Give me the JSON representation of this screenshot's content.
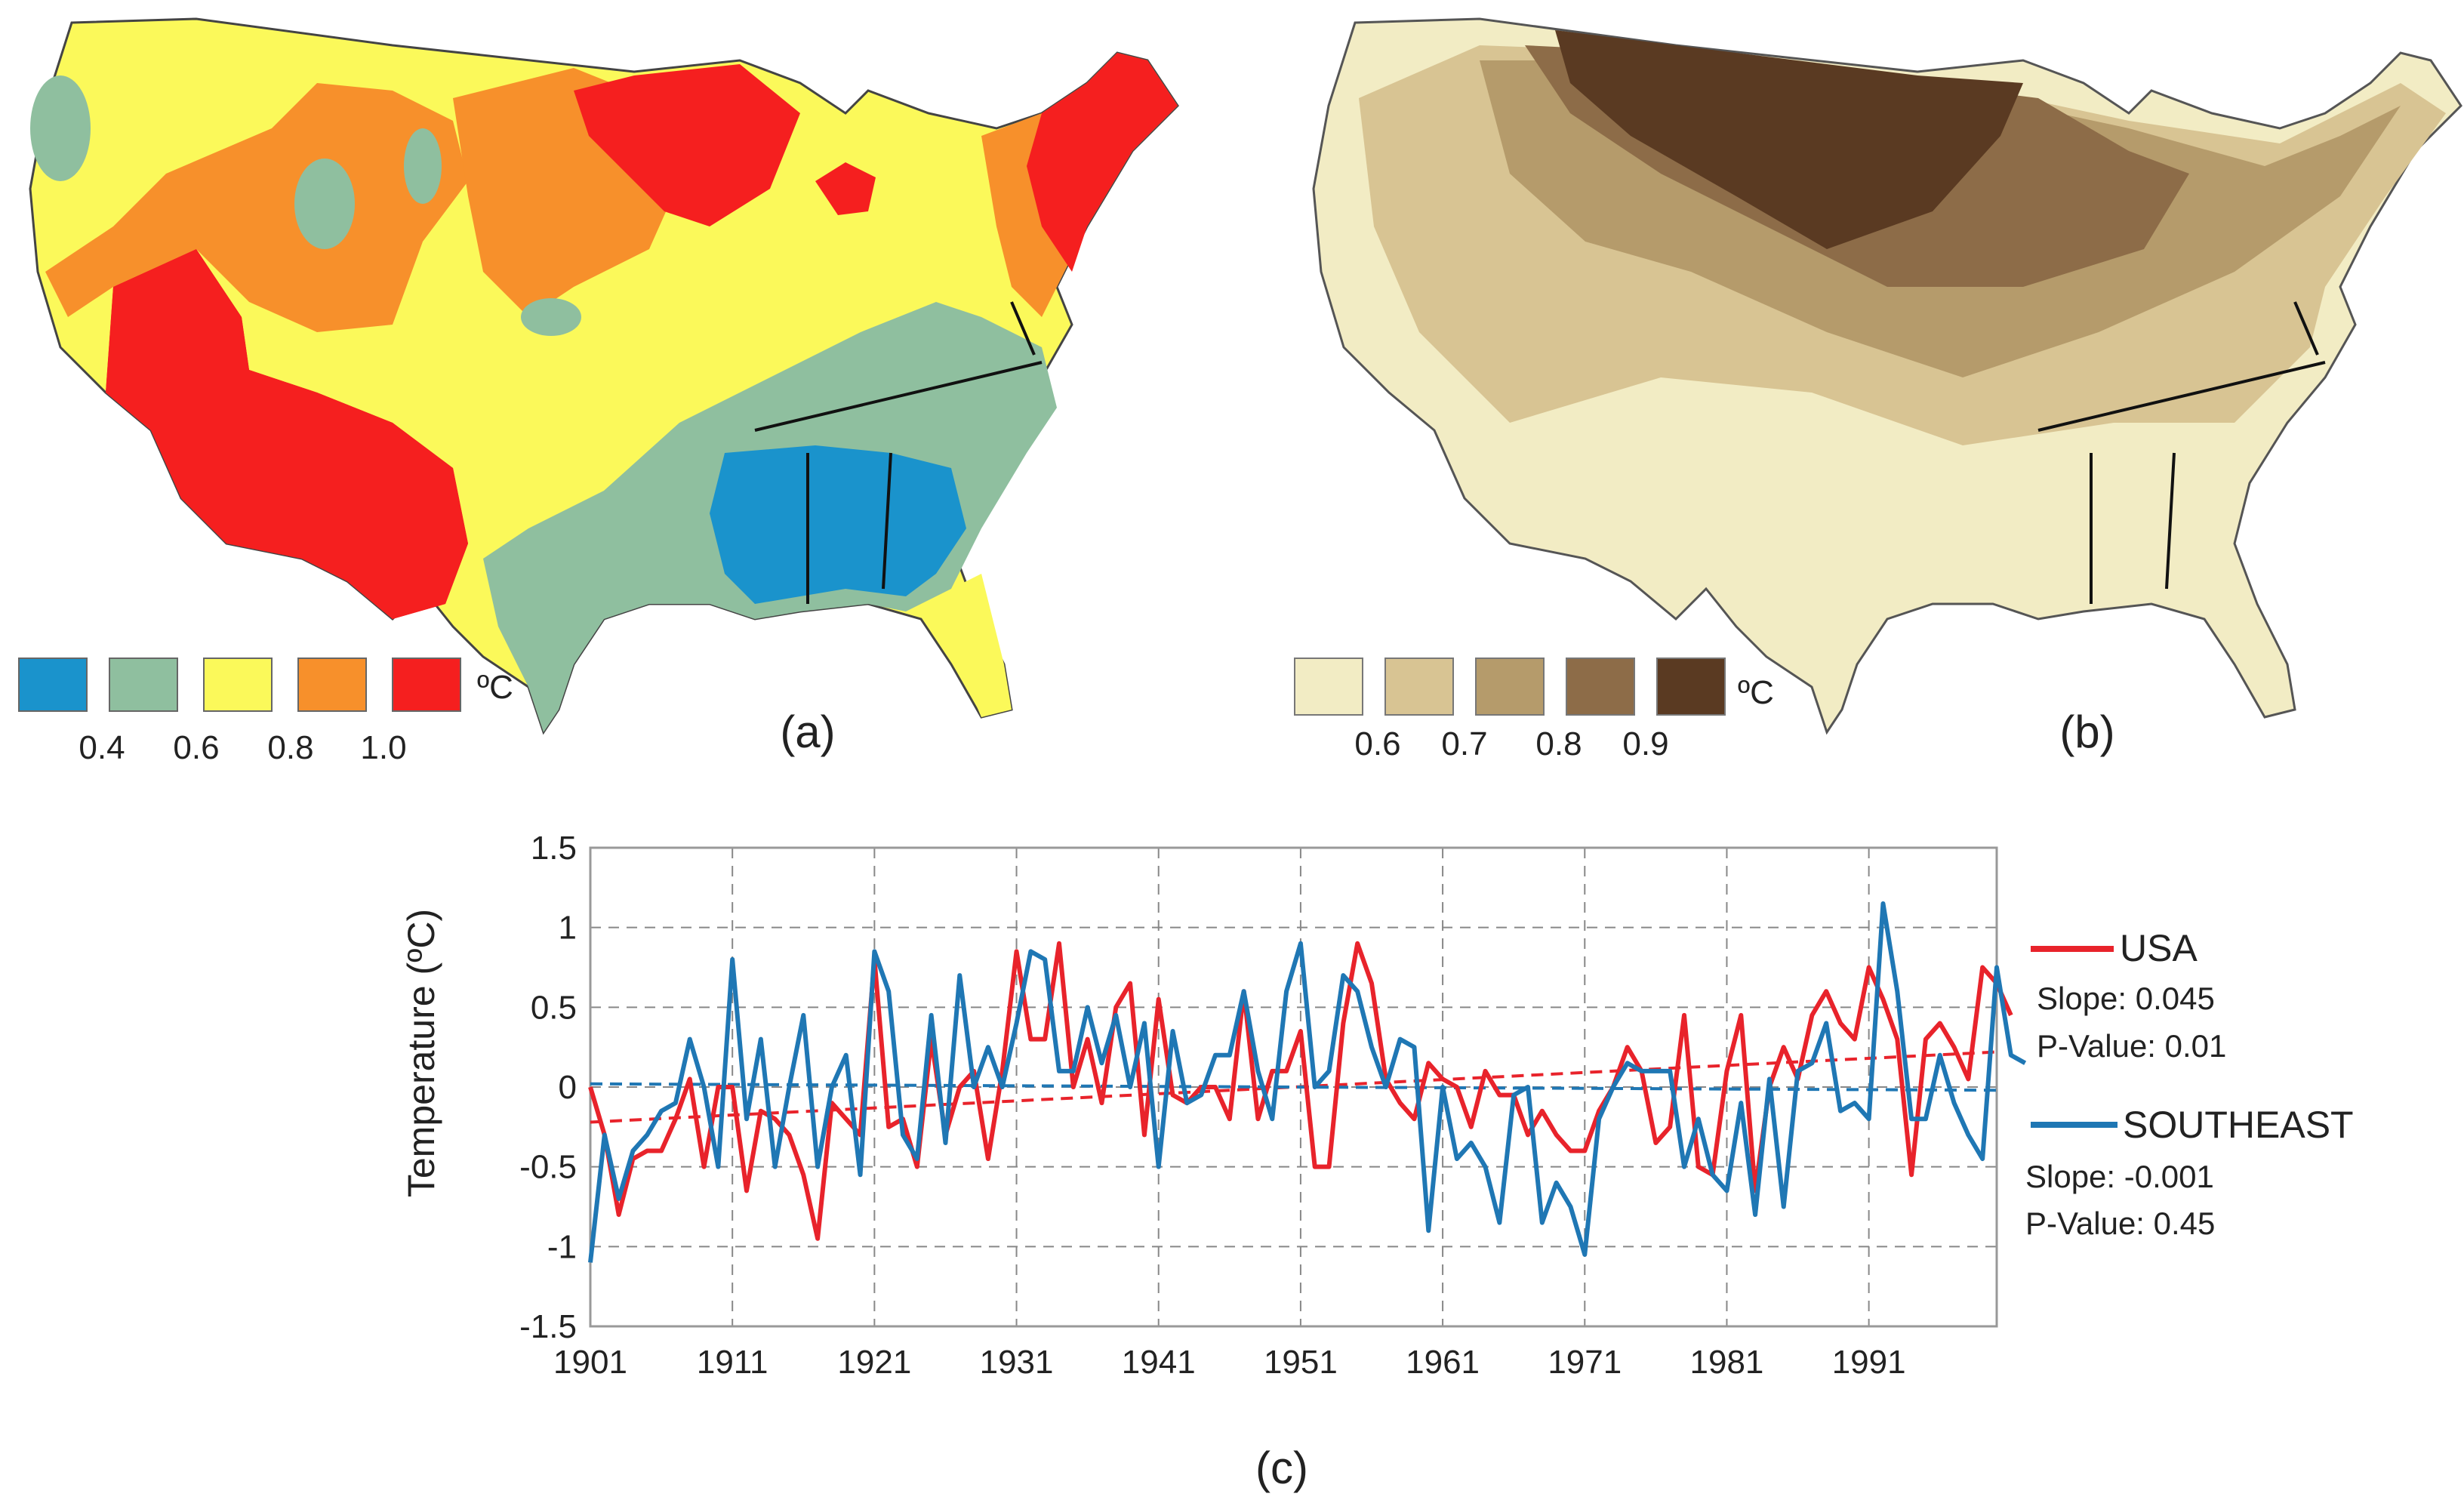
{
  "panels": {
    "a": {
      "label": "(a)",
      "unit": "ºC",
      "legend_colors": [
        "#1a93cc",
        "#8fbf9f",
        "#fbf95a",
        "#f7902b",
        "#f51f1f"
      ],
      "legend_ticks": [
        "0.4",
        "0.6",
        "0.8",
        "1.0"
      ]
    },
    "b": {
      "label": "(b)",
      "unit": "ºC",
      "legend_colors": [
        "#f2ecc4",
        "#d8c493",
        "#b59b6b",
        "#8d6c48",
        "#5a3a22"
      ],
      "legend_ticks": [
        "0.6",
        "0.7",
        "0.8",
        "0.9"
      ]
    },
    "c": {
      "label": "(c)"
    }
  },
  "chart_data": {
    "type": "line",
    "ylabel": "Temperature (ºC)",
    "xlabel": "",
    "xlim": [
      1901,
      2000
    ],
    "ylim": [
      -1.5,
      1.5
    ],
    "yticks": [
      "1.5",
      "1",
      "0.5",
      "0",
      "-0.5",
      "-1",
      "-1.5"
    ],
    "ytick_values": [
      1.5,
      1,
      0.5,
      0,
      -0.5,
      -1,
      -1.5
    ],
    "xticks": [
      "1901",
      "1911",
      "1921",
      "1931",
      "1941",
      "1951",
      "1961",
      "1971",
      "1981",
      "1991"
    ],
    "xtick_values": [
      1901,
      1911,
      1921,
      1931,
      1941,
      1951,
      1961,
      1971,
      1981,
      1991
    ],
    "grid": true,
    "series": [
      {
        "name": "USA",
        "color": "#e8232b",
        "slope_text": "Slope: 0.045",
        "pvalue_text": "P-Value: 0.01",
        "trend": [
          -0.22,
          0.22
        ],
        "x_start": 1901,
        "values": [
          0.0,
          -0.3,
          -0.8,
          -0.45,
          -0.4,
          -0.4,
          -0.2,
          0.05,
          -0.5,
          0.0,
          0.0,
          -0.65,
          -0.15,
          -0.2,
          -0.3,
          -0.55,
          -0.95,
          -0.1,
          -0.2,
          -0.3,
          0.8,
          -0.25,
          -0.2,
          -0.5,
          0.3,
          -0.3,
          0.0,
          0.1,
          -0.45,
          0.1,
          0.85,
          0.3,
          0.3,
          0.9,
          0.0,
          0.3,
          -0.1,
          0.5,
          0.65,
          -0.3,
          0.55,
          -0.05,
          -0.1,
          0.0,
          0.0,
          -0.2,
          0.6,
          -0.2,
          0.1,
          0.1,
          0.35,
          -0.5,
          -0.5,
          0.4,
          0.9,
          0.65,
          0.05,
          -0.1,
          -0.2,
          0.15,
          0.05,
          0.0,
          -0.25,
          0.1,
          -0.05,
          -0.05,
          -0.3,
          -0.15,
          -0.3,
          -0.4,
          -0.4,
          -0.15,
          0.0,
          0.25,
          0.1,
          -0.35,
          -0.25,
          0.45,
          -0.5,
          -0.55,
          0.1,
          0.45,
          -0.65,
          0.0,
          0.25,
          0.05,
          0.45,
          0.6,
          0.4,
          0.3,
          0.75,
          0.55,
          0.3,
          -0.55,
          0.3,
          0.4,
          0.25,
          0.05,
          0.75,
          0.65,
          0.45
        ]
      },
      {
        "name": "SOUTHEAST",
        "color": "#1f77b4",
        "slope_text": "Slope: -0.001",
        "pvalue_text": "P-Value: 0.45",
        "trend": [
          0.02,
          -0.02
        ],
        "x_start": 1901,
        "values": [
          -1.1,
          -0.3,
          -0.7,
          -0.4,
          -0.3,
          -0.15,
          -0.1,
          0.3,
          0.0,
          -0.5,
          0.8,
          -0.2,
          0.3,
          -0.5,
          0.0,
          0.45,
          -0.5,
          0.0,
          0.2,
          -0.55,
          0.85,
          0.6,
          -0.3,
          -0.45,
          0.45,
          -0.35,
          0.7,
          0.0,
          0.25,
          0.0,
          0.4,
          0.85,
          0.8,
          0.1,
          0.1,
          0.5,
          0.15,
          0.45,
          0.0,
          0.4,
          -0.5,
          0.35,
          -0.1,
          -0.05,
          0.2,
          0.2,
          0.6,
          0.1,
          -0.2,
          0.6,
          0.9,
          0.0,
          0.1,
          0.7,
          0.6,
          0.25,
          0.0,
          0.3,
          0.25,
          -0.9,
          0.0,
          -0.45,
          -0.35,
          -0.5,
          -0.85,
          -0.05,
          0.0,
          -0.85,
          -0.6,
          -0.75,
          -1.05,
          -0.2,
          0.0,
          0.15,
          0.1,
          0.1,
          0.1,
          -0.5,
          -0.2,
          -0.55,
          -0.65,
          -0.1,
          -0.8,
          0.05,
          -0.75,
          0.1,
          0.15,
          0.4,
          -0.15,
          -0.1,
          -0.2,
          1.15,
          0.6,
          -0.2,
          -0.2,
          0.2,
          -0.1,
          -0.3,
          -0.45,
          0.75,
          0.2,
          0.15
        ]
      }
    ]
  }
}
